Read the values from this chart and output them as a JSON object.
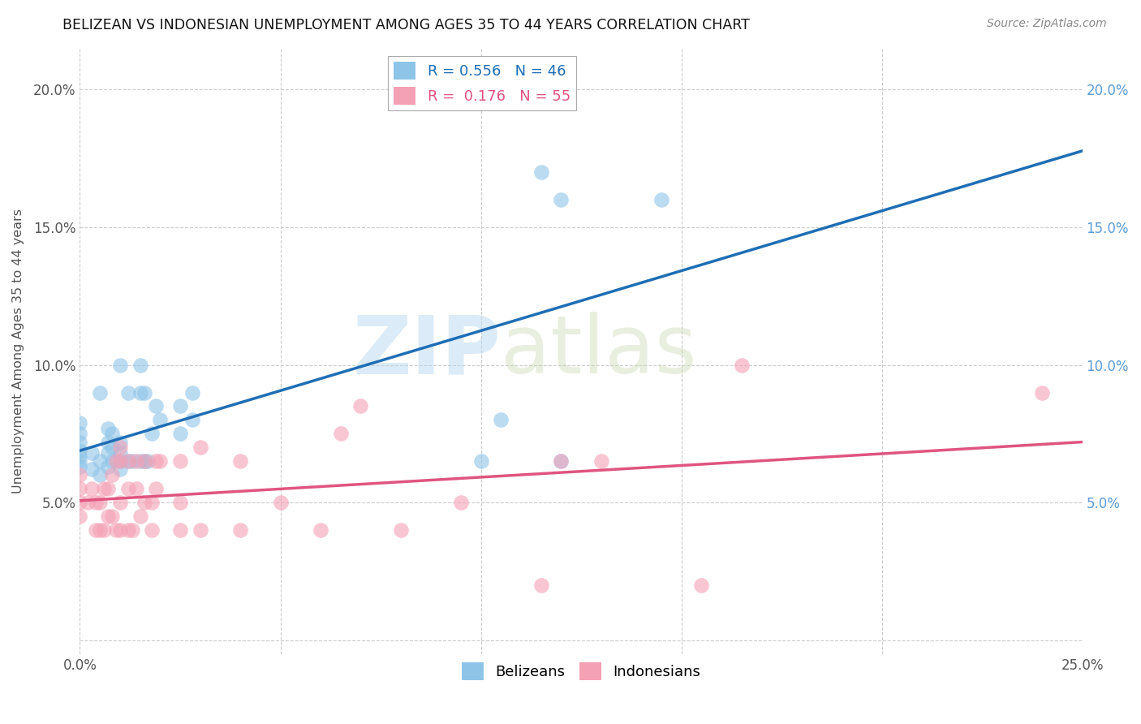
{
  "title": "BELIZEAN VS INDONESIAN UNEMPLOYMENT AMONG AGES 35 TO 44 YEARS CORRELATION CHART",
  "source": "Source: ZipAtlas.com",
  "ylabel": "Unemployment Among Ages 35 to 44 years",
  "xlim": [
    0,
    0.25
  ],
  "ylim": [
    -0.005,
    0.215
  ],
  "xticks": [
    0.0,
    0.05,
    0.1,
    0.15,
    0.2,
    0.25
  ],
  "xticklabels": [
    "0.0%",
    "",
    "",
    "",
    "",
    "25.0%"
  ],
  "yticks": [
    0.0,
    0.05,
    0.1,
    0.15,
    0.2
  ],
  "yticklabels_left": [
    "",
    "5.0%",
    "10.0%",
    "15.0%",
    "20.0%"
  ],
  "yticklabels_right": [
    "",
    "5.0%",
    "10.0%",
    "15.0%",
    "20.0%"
  ],
  "belizean_color": "#8ec4e8",
  "indonesian_color": "#f4a0b5",
  "belizean_line_color": "#1f6eb5",
  "indonesian_line_color": "#e05580",
  "legend_R_belizean": "0.556",
  "legend_N_belizean": "46",
  "legend_R_indonesian": "0.176",
  "legend_N_indonesian": "55",
  "watermark_zip": "ZIP",
  "watermark_atlas": "atlas",
  "belizean_x": [
    0.0,
    0.0,
    0.0,
    0.0,
    0.0,
    0.0,
    0.0,
    0.003,
    0.003,
    0.005,
    0.005,
    0.005,
    0.007,
    0.007,
    0.007,
    0.007,
    0.008,
    0.008,
    0.008,
    0.01,
    0.01,
    0.01,
    0.01,
    0.01,
    0.012,
    0.012,
    0.013,
    0.015,
    0.015,
    0.015,
    0.016,
    0.016,
    0.017,
    0.018,
    0.019,
    0.02,
    0.025,
    0.025,
    0.028,
    0.028,
    0.1,
    0.105,
    0.115,
    0.12,
    0.12,
    0.145
  ],
  "belizean_y": [
    0.063,
    0.065,
    0.067,
    0.069,
    0.072,
    0.075,
    0.079,
    0.062,
    0.068,
    0.06,
    0.065,
    0.09,
    0.063,
    0.068,
    0.072,
    0.077,
    0.065,
    0.07,
    0.075,
    0.062,
    0.065,
    0.068,
    0.072,
    0.1,
    0.065,
    0.09,
    0.065,
    0.065,
    0.09,
    0.1,
    0.065,
    0.09,
    0.065,
    0.075,
    0.085,
    0.08,
    0.085,
    0.075,
    0.08,
    0.09,
    0.065,
    0.08,
    0.17,
    0.065,
    0.16,
    0.16
  ],
  "indonesian_x": [
    0.0,
    0.0,
    0.0,
    0.0,
    0.002,
    0.003,
    0.004,
    0.004,
    0.005,
    0.005,
    0.006,
    0.006,
    0.007,
    0.007,
    0.008,
    0.008,
    0.009,
    0.009,
    0.01,
    0.01,
    0.01,
    0.01,
    0.012,
    0.012,
    0.012,
    0.013,
    0.014,
    0.014,
    0.015,
    0.016,
    0.016,
    0.018,
    0.018,
    0.019,
    0.019,
    0.02,
    0.025,
    0.025,
    0.025,
    0.03,
    0.03,
    0.04,
    0.04,
    0.05,
    0.06,
    0.065,
    0.07,
    0.08,
    0.095,
    0.115,
    0.12,
    0.13,
    0.155,
    0.165,
    0.24
  ],
  "indonesian_y": [
    0.045,
    0.05,
    0.055,
    0.06,
    0.05,
    0.055,
    0.04,
    0.05,
    0.04,
    0.05,
    0.04,
    0.055,
    0.045,
    0.055,
    0.045,
    0.06,
    0.04,
    0.065,
    0.04,
    0.05,
    0.065,
    0.07,
    0.04,
    0.055,
    0.065,
    0.04,
    0.055,
    0.065,
    0.045,
    0.05,
    0.065,
    0.04,
    0.05,
    0.055,
    0.065,
    0.065,
    0.04,
    0.05,
    0.065,
    0.04,
    0.07,
    0.04,
    0.065,
    0.05,
    0.04,
    0.075,
    0.085,
    0.04,
    0.05,
    0.02,
    0.065,
    0.065,
    0.02,
    0.1,
    0.09
  ]
}
